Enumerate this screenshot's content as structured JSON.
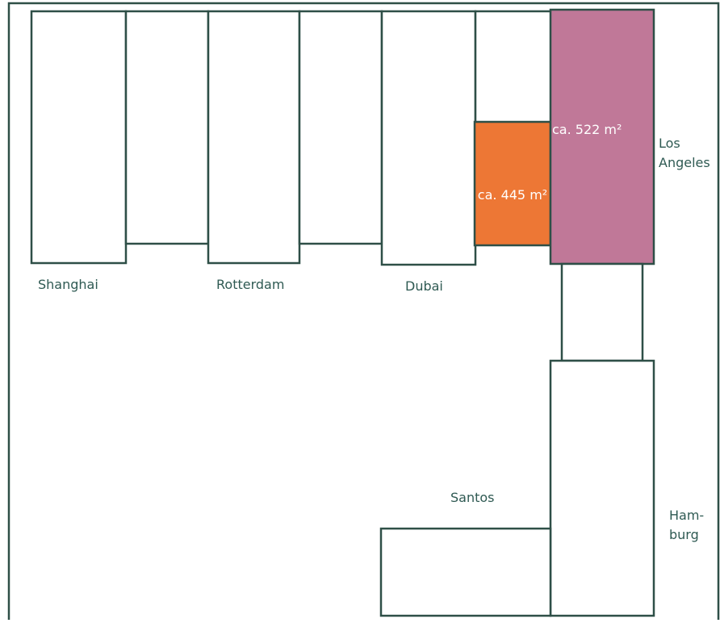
{
  "colors": {
    "outline": "#2e4f47",
    "label_text": "#2f5a53",
    "orange_unit": "#ed7735",
    "pink_unit": "#c07898",
    "area_text": "#ffffff"
  },
  "labels": {
    "shanghai": "Shanghai",
    "rotterdam": "Rotterdam",
    "dubai": "Dubai",
    "los_angeles_line1": "Los",
    "los_angeles_line2": "Angeles",
    "santos": "Santos",
    "hamburg_line1": "Ham-",
    "hamburg_line2": "burg"
  },
  "areas": {
    "orange": "ca. 445 m²",
    "pink": "ca. 522 m²"
  }
}
